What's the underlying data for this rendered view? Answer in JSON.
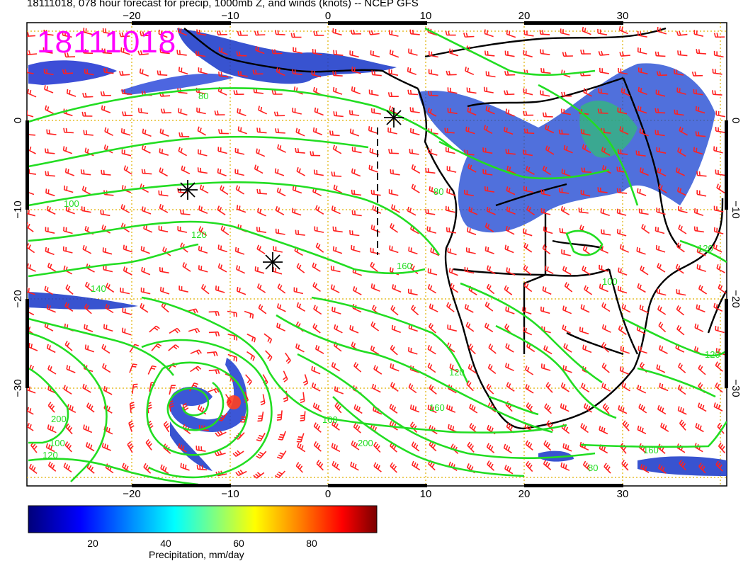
{
  "title": "18111018, 078 hour forecast for precip, 1000mb Z, and winds (knots) -- NCEP GFS",
  "stamp": "18111018",
  "axes": {
    "lon_ticks": [
      "−20",
      "−10",
      "0",
      "10",
      "20",
      "30"
    ],
    "lat_ticks": [
      "0",
      "−10",
      "−20",
      "−30"
    ]
  },
  "contour_labels": [
    "80",
    "100",
    "120",
    "140",
    "160",
    "200",
    "80",
    "100",
    "120",
    "160",
    "120",
    "160",
    "100",
    "120",
    "80",
    "160",
    "200",
    "120"
  ],
  "colorbar": {
    "title": "Precipitation, mm/day",
    "ticks": [
      "20",
      "40",
      "60",
      "80"
    ],
    "colors": [
      "#000080",
      "#0000ff",
      "#0080ff",
      "#00ffff",
      "#80ff80",
      "#ffff00",
      "#ff8000",
      "#ff0000",
      "#800000"
    ]
  },
  "colors": {
    "contour": "#22dd22",
    "wind": "#ff2020",
    "grid": "#e0b000",
    "stamp": "#ff00ff",
    "coast": "#000000"
  }
}
